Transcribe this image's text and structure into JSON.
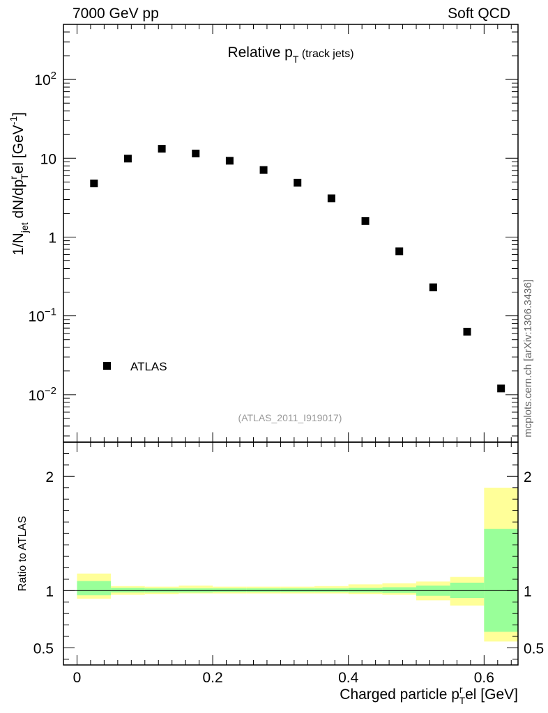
{
  "header": {
    "left": "7000 GeV pp",
    "right": "Soft QCD"
  },
  "credit": "mcplots.cern.ch [arXiv:1306.3436]",
  "chart_data": {
    "type": "scatter",
    "title": "Relative p_T (track jets)",
    "main_title_parts": {
      "base": "Relative p",
      "sub": "T",
      "rest": "(track jets)"
    },
    "ylabel_parts": {
      "a": "1/N",
      "a_sub": "jet",
      "b": " dN/dp",
      "b_sup": "r",
      "b_sub": "T",
      "c": "el [GeV",
      "c_sup": "-1",
      "d": "]"
    },
    "xlabel_parts": {
      "a": "Charged particle p",
      "sup": "r",
      "sub": "T",
      "b": "el [GeV]"
    },
    "ratio_ylabel": "Ratio to ATLAS",
    "reference_id": "(ATLAS_2011_I919017)",
    "log_y": true,
    "xlim": [
      -0.02,
      0.65
    ],
    "ylim": [
      0.0025,
      500
    ],
    "ratio_ylim": [
      0.35,
      2.3
    ],
    "x_ticks": [
      "0",
      "0.2",
      "0.4",
      "0.6"
    ],
    "x_tick_values": [
      0,
      0.2,
      0.4,
      0.6
    ],
    "y_ticks": [
      {
        "value": 100,
        "base": "10",
        "exp": "2"
      },
      {
        "value": 10,
        "base": "10",
        "exp": ""
      },
      {
        "value": 1,
        "base": "1",
        "exp": ""
      },
      {
        "value": 0.1,
        "base": "10",
        "exp": "−1"
      },
      {
        "value": 0.01,
        "base": "10",
        "exp": "−2"
      }
    ],
    "ratio_y_ticks": [
      "0.5",
      "1",
      "2"
    ],
    "ratio_y_tick_values": [
      0.5,
      1,
      2
    ],
    "legend": {
      "label": "ATLAS",
      "position": "bottom-left"
    },
    "series": [
      {
        "name": "ATLAS",
        "marker": "square",
        "color": "#000000",
        "x": [
          0.025,
          0.075,
          0.125,
          0.175,
          0.225,
          0.275,
          0.325,
          0.375,
          0.425,
          0.475,
          0.525,
          0.575,
          0.625
        ],
        "y": [
          4.8,
          9.9,
          13.2,
          11.5,
          9.3,
          7.1,
          4.9,
          3.1,
          1.6,
          0.66,
          0.23,
          0.063,
          0.012
        ]
      }
    ],
    "ratio_bands": {
      "bin_edges": [
        0.0,
        0.05,
        0.1,
        0.15,
        0.2,
        0.25,
        0.3,
        0.35,
        0.4,
        0.45,
        0.5,
        0.55,
        0.6,
        0.65
      ],
      "inner": {
        "color": "#99ff99",
        "low": [
          0.96,
          0.985,
          0.985,
          0.985,
          0.988,
          0.988,
          0.988,
          0.988,
          0.985,
          0.98,
          0.955,
          0.935,
          0.64
        ],
        "high": [
          1.085,
          1.025,
          1.02,
          1.02,
          1.02,
          1.02,
          1.02,
          1.02,
          1.025,
          1.03,
          1.045,
          1.07,
          1.54
        ]
      },
      "outer": {
        "color": "#ffff99",
        "low": [
          0.93,
          0.965,
          0.97,
          0.975,
          0.975,
          0.975,
          0.975,
          0.975,
          0.97,
          0.965,
          0.915,
          0.87,
          0.555
        ],
        "high": [
          1.15,
          1.04,
          1.035,
          1.045,
          1.035,
          1.035,
          1.035,
          1.04,
          1.055,
          1.065,
          1.08,
          1.12,
          1.9
        ]
      },
      "reference_line": 1
    }
  }
}
